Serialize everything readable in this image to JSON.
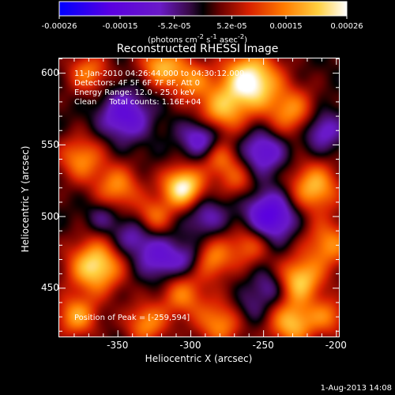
{
  "chart_data": {
    "type": "heatmap",
    "title": "Reconstructed RHESSI Image",
    "xlabel": "Heliocentric X (arcsec)",
    "ylabel": "Heliocentric Y (arcsec)",
    "xlim": [
      -390,
      -198
    ],
    "ylim": [
      416,
      610
    ],
    "x_ticks": [
      "-350",
      "-300",
      "-250",
      "-200"
    ],
    "x_tick_values": [
      -350,
      -300,
      -250,
      -200
    ],
    "y_ticks": [
      "600",
      "550",
      "500",
      "450"
    ],
    "y_tick_values": [
      600,
      550,
      500,
      450
    ],
    "colorbar": {
      "range": [
        -0.00026,
        0.00026
      ],
      "ticks": [
        "-0.00026",
        "-0.00015",
        "-5.2e-05",
        "5.2e-05",
        "0.00015",
        "0.00026"
      ],
      "tick_values": [
        -0.00026,
        -0.00015,
        -5.2e-05,
        5.2e-05,
        0.00015,
        0.00026
      ],
      "units_prefix": "(photons cm",
      "units_exp1": "-2",
      "units_mid": " s",
      "units_exp2": "-1",
      "units_end": " asec",
      "units_exp3": "-2",
      "units_close": ")"
    },
    "annotations": {
      "time_range": "11-Jan-2010 04:26:44.000 to 04:30:12.000",
      "detectors": "Detectors: 4F 5F 6F 7F 8F, Att 0",
      "energy": "Energy Range: 12.0 - 25.0 keV",
      "clean": "Clean     Total counts: 1.16E+04",
      "peak": "Position of Peak = [-259,594]"
    },
    "peak_position": [
      -259,
      594
    ],
    "blobs": [
      {
        "x": -259,
        "y": 594,
        "amp": 1.0,
        "s": 14
      },
      {
        "x": -280,
        "y": 572,
        "amp": 0.6,
        "s": 12
      },
      {
        "x": -230,
        "y": 572,
        "amp": 0.55,
        "s": 12
      },
      {
        "x": -320,
        "y": 605,
        "amp": 0.65,
        "s": 10
      },
      {
        "x": -300,
        "y": 595,
        "amp": 0.5,
        "s": 10
      },
      {
        "x": -370,
        "y": 600,
        "amp": 0.5,
        "s": 10
      },
      {
        "x": -375,
        "y": 540,
        "amp": 0.55,
        "s": 11
      },
      {
        "x": -350,
        "y": 520,
        "amp": 0.55,
        "s": 11
      },
      {
        "x": -325,
        "y": 500,
        "amp": 0.45,
        "s": 9
      },
      {
        "x": -305,
        "y": 520,
        "amp": 0.95,
        "s": 10
      },
      {
        "x": -280,
        "y": 540,
        "amp": 0.45,
        "s": 9
      },
      {
        "x": -268,
        "y": 525,
        "amp": 0.35,
        "s": 9
      },
      {
        "x": -215,
        "y": 520,
        "amp": 0.7,
        "s": 12
      },
      {
        "x": -205,
        "y": 480,
        "amp": 0.55,
        "s": 12
      },
      {
        "x": -225,
        "y": 455,
        "amp": 0.75,
        "s": 11
      },
      {
        "x": -260,
        "y": 480,
        "amp": 0.45,
        "s": 10
      },
      {
        "x": -285,
        "y": 470,
        "amp": 0.55,
        "s": 10
      },
      {
        "x": -305,
        "y": 445,
        "amp": 0.5,
        "s": 11
      },
      {
        "x": -365,
        "y": 465,
        "amp": 0.85,
        "s": 13
      },
      {
        "x": -378,
        "y": 430,
        "amp": 0.6,
        "s": 10
      },
      {
        "x": -330,
        "y": 425,
        "amp": 0.55,
        "s": 10
      },
      {
        "x": -280,
        "y": 425,
        "amp": 0.55,
        "s": 11
      },
      {
        "x": -230,
        "y": 425,
        "amp": 0.7,
        "s": 11
      },
      {
        "x": -205,
        "y": 430,
        "amp": 0.45,
        "s": 9
      },
      {
        "x": -345,
        "y": 570,
        "amp": -0.55,
        "s": 12
      },
      {
        "x": -292,
        "y": 555,
        "amp": -0.55,
        "s": 10
      },
      {
        "x": -245,
        "y": 500,
        "amp": -0.7,
        "s": 12
      },
      {
        "x": -250,
        "y": 545,
        "amp": -0.5,
        "s": 11
      },
      {
        "x": -320,
        "y": 470,
        "amp": -0.45,
        "s": 11
      },
      {
        "x": -340,
        "y": 485,
        "amp": -0.35,
        "s": 10
      },
      {
        "x": -210,
        "y": 560,
        "amp": -0.45,
        "s": 10
      },
      {
        "x": -360,
        "y": 500,
        "amp": -0.25,
        "s": 8
      },
      {
        "x": -290,
        "y": 500,
        "amp": -0.35,
        "s": 10
      },
      {
        "x": -300,
        "y": 470,
        "amp": -0.3,
        "s": 8
      },
      {
        "x": -245,
        "y": 450,
        "amp": -0.35,
        "s": 9
      },
      {
        "x": -260,
        "y": 435,
        "amp": -0.2,
        "s": 8
      }
    ],
    "colors": {
      "background": "#000000",
      "colormap": [
        "#0000ff",
        "#6a00c8",
        "#3a0a4a",
        "#000000",
        "#6a0000",
        "#d82000",
        "#ff8000",
        "#ffe860",
        "#ffffff"
      ]
    }
  },
  "footer": {
    "timestamp": "1-Aug-2013 14:08"
  }
}
